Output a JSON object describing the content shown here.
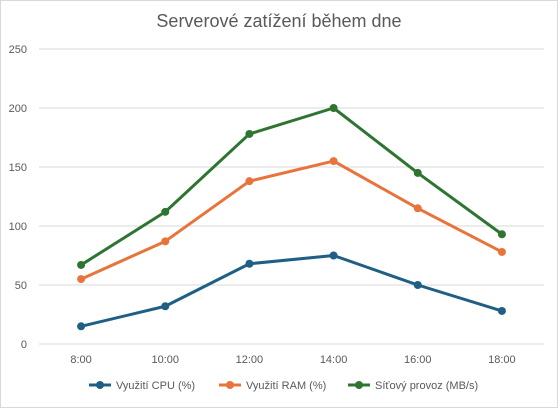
{
  "chart_data": {
    "type": "line",
    "title": "Serverové zatížení během dne",
    "categories": [
      "8:00",
      "10:00",
      "12:00",
      "14:00",
      "16:00",
      "18:00"
    ],
    "ylim": [
      0,
      250
    ],
    "yticks": [
      0,
      50,
      100,
      150,
      200,
      250
    ],
    "grid": true,
    "legend_position": "bottom",
    "series": [
      {
        "name": "Využití CPU (%)",
        "color": "#1f5f84",
        "values": [
          15,
          32,
          68,
          75,
          50,
          28
        ]
      },
      {
        "name": "Využití RAM (%)",
        "color": "#e8743b",
        "values": [
          55,
          87,
          138,
          155,
          115,
          78
        ]
      },
      {
        "name": "Síťový provoz (MB/s)",
        "color": "#2e7532",
        "values": [
          67,
          112,
          178,
          200,
          145,
          93
        ]
      }
    ]
  }
}
